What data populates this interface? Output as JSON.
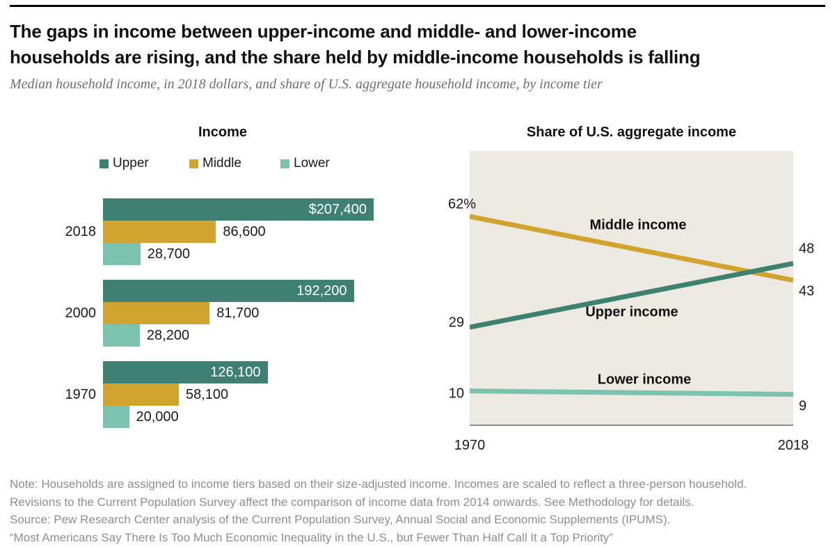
{
  "page": {
    "title": "The gaps in income between upper-income and middle- and lower-income\nhouseholds are rising, and the share held by middle-income households is falling",
    "subtitle": "Median household income, in 2018 dollars, and share of U.S. aggregate household income, by income tier",
    "notes": [
      "Note: Households are assigned to income tiers based on their size-adjusted income. Incomes are scaled to reflect a three-person household.",
      "Revisions to the Current Population Survey affect the comparison of income data from 2014 onwards. See Methodology for details.",
      "Source: Pew Research Center analysis of the Current Population Survey, Annual Social and Economic Supplements (IPUMS).",
      "“Most Americans Say There Is Too Much Economic Inequality in the U.S., but Fewer Than Half Call It a Top Priority”"
    ]
  },
  "colors": {
    "upper": "#3E8173",
    "middle": "#D1A42F",
    "lower": "#7BC3AF",
    "plot_bg": "#EDEAE2",
    "axis": "#8A8A8A"
  },
  "chart_data": [
    {
      "type": "bar",
      "title": "Income",
      "orientation": "horizontal",
      "legend": [
        "Upper",
        "Middle",
        "Lower"
      ],
      "categories": [
        "2018",
        "2000",
        "1970"
      ],
      "series": [
        {
          "name": "Upper",
          "color_key": "upper",
          "values": [
            207400,
            192200,
            126100
          ],
          "labels": [
            "$207,400",
            "192,200",
            "126,100"
          ],
          "label_placement": "inside"
        },
        {
          "name": "Middle",
          "color_key": "middle",
          "values": [
            86600,
            81700,
            58100
          ],
          "labels": [
            "86,600",
            "81,700",
            "58,100"
          ],
          "label_placement": "outside"
        },
        {
          "name": "Lower",
          "color_key": "lower",
          "values": [
            28700,
            28200,
            20000
          ],
          "labels": [
            "28,700",
            "28,200",
            "20,000"
          ],
          "label_placement": "outside"
        }
      ],
      "xlim": [
        0,
        207400
      ]
    },
    {
      "type": "line",
      "title": "Share of U.S. aggregate income",
      "x": [
        1970,
        2018
      ],
      "xlabels": [
        "1970",
        "2018"
      ],
      "ylim": [
        0,
        81.5
      ],
      "grid": false,
      "series": [
        {
          "name": "Middle income",
          "color_key": "middle",
          "values": [
            62,
            43
          ],
          "start_label": "62%",
          "end_label": "43",
          "start_dx": 17,
          "start_dy": -17,
          "end_dy": 16
        },
        {
          "name": "Upper income",
          "color_key": "upper",
          "values": [
            29,
            48
          ],
          "start_label": "29",
          "end_label": "48",
          "start_dx": 0,
          "start_dy": -6,
          "end_dy": -21
        },
        {
          "name": "Lower income",
          "color_key": "lower",
          "values": [
            10,
            9
          ],
          "start_label": "10",
          "end_label": "9",
          "start_dx": 0,
          "start_dy": 4,
          "end_dy": 17
        }
      ],
      "annotations": [
        {
          "text": "Middle income",
          "cx": 0.52,
          "cy": 0.273
        },
        {
          "text": "Upper income",
          "cx": 0.5,
          "cy": 0.59
        },
        {
          "text": "Lower income",
          "cx": 0.54,
          "cy": 0.838
        }
      ]
    }
  ]
}
